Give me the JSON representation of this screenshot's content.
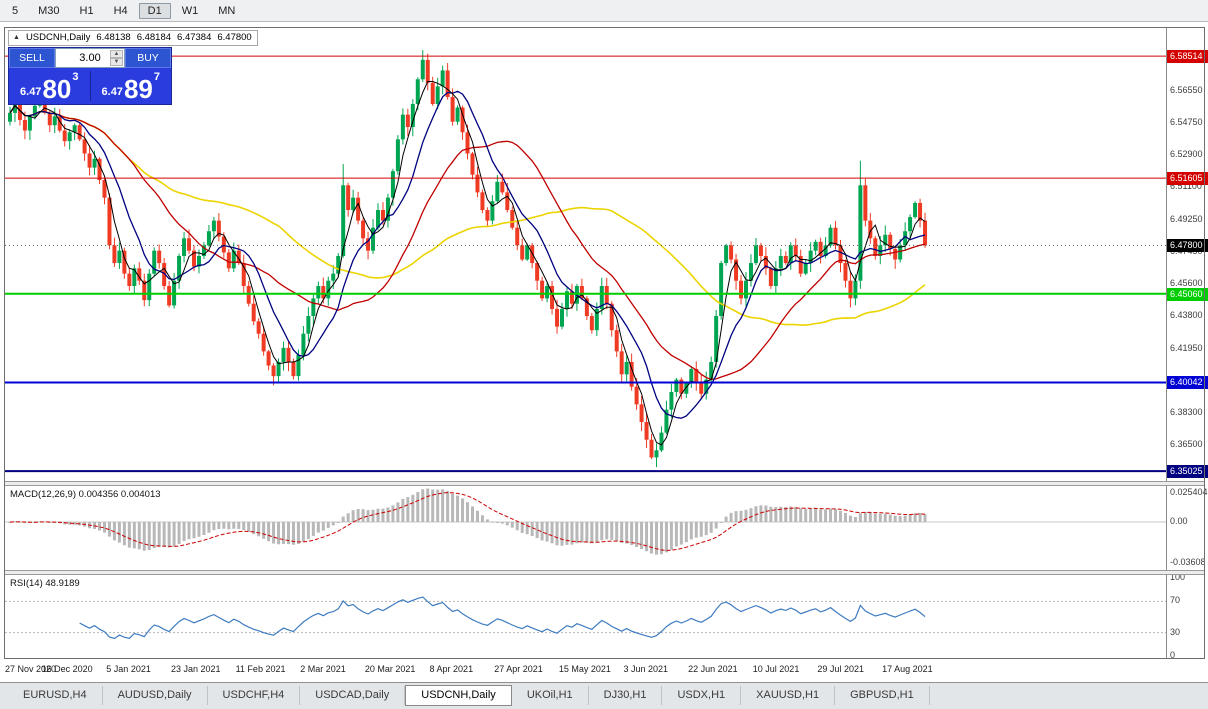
{
  "toolbar": {
    "timeframes": [
      "5",
      "M30",
      "H1",
      "H4",
      "D1",
      "W1",
      "MN"
    ],
    "active": "D1"
  },
  "symbol_info": {
    "collapse_icon": "▲",
    "symbol": "USDCNH,Daily",
    "open": "6.48138",
    "high": "6.48184",
    "low": "6.47384",
    "close": "6.47800"
  },
  "trade_panel": {
    "sell_label": "SELL",
    "buy_label": "BUY",
    "volume": "3.00",
    "sell_price": {
      "prefix": "6.47",
      "big": "80",
      "sup": "3"
    },
    "buy_price": {
      "prefix": "6.47",
      "big": "89",
      "sup": "7"
    }
  },
  "chart_data": {
    "type": "candlestick",
    "symbol": "USDCNH",
    "timeframe": "Daily",
    "title": "USDCNH,Daily",
    "note": "close series read from screenshot; open=previous close; wicks approximated",
    "first_open": 6.548,
    "closes": [
      6.553,
      6.561,
      6.549,
      6.543,
      6.551,
      6.557,
      6.562,
      6.553,
      6.546,
      6.551,
      6.543,
      6.537,
      6.542,
      6.546,
      6.538,
      6.53,
      6.522,
      6.527,
      6.515,
      6.505,
      6.478,
      6.468,
      6.475,
      6.462,
      6.455,
      6.465,
      6.458,
      6.447,
      6.462,
      6.475,
      6.468,
      6.455,
      6.444,
      6.458,
      6.472,
      6.482,
      6.475,
      6.466,
      6.472,
      6.478,
      6.486,
      6.492,
      6.483,
      6.474,
      6.465,
      6.475,
      6.468,
      6.455,
      6.445,
      6.435,
      6.428,
      6.418,
      6.41,
      6.404,
      6.412,
      6.42,
      6.412,
      6.404,
      6.416,
      6.428,
      6.438,
      6.448,
      6.455,
      6.448,
      6.458,
      6.462,
      6.472,
      6.512,
      6.498,
      6.505,
      6.492,
      6.482,
      6.475,
      6.488,
      6.498,
      6.492,
      6.505,
      6.52,
      6.538,
      6.552,
      6.545,
      6.558,
      6.572,
      6.583,
      6.57,
      6.558,
      6.568,
      6.577,
      6.562,
      6.548,
      6.556,
      6.542,
      6.53,
      6.518,
      6.508,
      6.498,
      6.492,
      6.503,
      6.514,
      6.508,
      6.498,
      6.488,
      6.478,
      6.47,
      6.478,
      6.468,
      6.458,
      6.448,
      6.455,
      6.442,
      6.432,
      6.442,
      6.452,
      6.445,
      6.455,
      6.448,
      6.438,
      6.43,
      6.442,
      6.455,
      6.445,
      6.43,
      6.418,
      6.405,
      6.412,
      6.398,
      6.388,
      6.378,
      6.368,
      6.358,
      6.362,
      6.372,
      6.385,
      6.395,
      6.402,
      6.394,
      6.4,
      6.408,
      6.4,
      6.394,
      6.402,
      6.412,
      6.438,
      6.468,
      6.478,
      6.47,
      6.458,
      6.448,
      6.458,
      6.468,
      6.478,
      6.472,
      6.465,
      6.455,
      6.465,
      6.472,
      6.468,
      6.478,
      6.472,
      6.462,
      6.468,
      6.475,
      6.48,
      6.472,
      6.478,
      6.488,
      6.478,
      6.468,
      6.458,
      6.448,
      6.458,
      6.512,
      6.492,
      6.482,
      6.472,
      6.478,
      6.484,
      6.476,
      6.47,
      6.478,
      6.486,
      6.494,
      6.502,
      6.492,
      6.478
    ],
    "x_ticks": [
      {
        "i": 0,
        "label": "27 Nov 2020"
      },
      {
        "i": 13,
        "label": "16 Dec 2020"
      },
      {
        "i": 26,
        "label": "5 Jan 2021"
      },
      {
        "i": 39,
        "label": "23 Jan 2021"
      },
      {
        "i": 52,
        "label": "11 Feb 2021"
      },
      {
        "i": 65,
        "label": "2 Mar 2021"
      },
      {
        "i": 78,
        "label": "20 Mar 2021"
      },
      {
        "i": 91,
        "label": "8 Apr 2021"
      },
      {
        "i": 104,
        "label": "27 Apr 2021"
      },
      {
        "i": 117,
        "label": "15 May 2021"
      },
      {
        "i": 130,
        "label": "3 Jun 2021"
      },
      {
        "i": 143,
        "label": "22 Jun 2021"
      },
      {
        "i": 156,
        "label": "10 Jul 2021"
      },
      {
        "i": 169,
        "label": "29 Jul 2021"
      },
      {
        "i": 182,
        "label": "17 Aug 2021"
      }
    ],
    "y_axis_labels": [
      {
        "price": 6.5655,
        "text": "6.56550"
      },
      {
        "price": 6.5475,
        "text": "6.54750"
      },
      {
        "price": 6.529,
        "text": "6.52900"
      },
      {
        "price": 6.511,
        "text": "6.51100"
      },
      {
        "price": 6.4925,
        "text": "6.49250"
      },
      {
        "price": 6.4745,
        "text": "6.47450"
      },
      {
        "price": 6.456,
        "text": "6.45600"
      },
      {
        "price": 6.438,
        "text": "6.43800"
      },
      {
        "price": 6.4195,
        "text": "6.41950"
      },
      {
        "price": 6.4015,
        "text": "6.40150"
      },
      {
        "price": 6.383,
        "text": "6.38300"
      },
      {
        "price": 6.365,
        "text": "6.36500"
      }
    ],
    "levels": [
      {
        "price": 6.58514,
        "text": "6.58514",
        "color": "#d40000",
        "width": 1
      },
      {
        "price": 6.51605,
        "text": "6.51605",
        "color": "#d40000",
        "width": 1
      },
      {
        "price": 6.4506,
        "text": "6.45060",
        "color": "#00ce00",
        "width": 2
      },
      {
        "price": 6.40042,
        "text": "6.40042",
        "color": "#0000d4",
        "width": 2
      },
      {
        "price": 6.35025,
        "text": "6.35025",
        "color": "#000080",
        "width": 2
      }
    ],
    "current_price": {
      "price": 6.478,
      "text": "6.47800",
      "color": "#000000"
    },
    "candle_colors": {
      "up": "#00a551",
      "down": "#ef3b24"
    },
    "moving_averages": [
      {
        "name": "ma-fast-black",
        "window": 4,
        "color": "#000000",
        "width": 1
      },
      {
        "name": "ma-navy",
        "window": 10,
        "color": "#000080",
        "width": 1.3
      },
      {
        "name": "ma-red",
        "window": 25,
        "color": "#c00000",
        "width": 1.3
      },
      {
        "name": "ma-yellow",
        "window": 55,
        "color": "#ecd400",
        "width": 1.6
      }
    ],
    "indicators": {
      "macd": {
        "label": "MACD(12,26,9)",
        "values": "0.004356 0.004013",
        "fast": 12,
        "slow": 26,
        "signal": 9,
        "axis": [
          {
            "v": 0.025404,
            "text": "0.025404"
          },
          {
            "v": 0,
            "text": "0.00"
          },
          {
            "v": -0.03608,
            "text": "-0.03608"
          }
        ],
        "hist_color": "#b8b8b8",
        "signal_color": "#cc0000"
      },
      "rsi": {
        "label": "RSI(14)",
        "value": "48.9189",
        "period": 14,
        "axis": [
          {
            "v": 100,
            "text": "100"
          },
          {
            "v": 70,
            "text": "70"
          },
          {
            "v": 30,
            "text": "30"
          },
          {
            "v": 0,
            "text": "0"
          }
        ],
        "line_color": "#3e7bbf",
        "level_lines": [
          70,
          30
        ]
      }
    }
  },
  "tabs": {
    "active_index": 4,
    "items": [
      {
        "label": "EURUSD,H4"
      },
      {
        "label": "AUDUSD,Daily"
      },
      {
        "label": "USDCHF,H4"
      },
      {
        "label": "USDCAD,Daily"
      },
      {
        "label": "USDCNH,Daily"
      },
      {
        "label": "UKOil,H1"
      },
      {
        "label": "DJ30,H1"
      },
      {
        "label": "USDX,H1"
      },
      {
        "label": "XAUUSD,H1"
      },
      {
        "label": "GBPUSD,H1"
      }
    ]
  }
}
